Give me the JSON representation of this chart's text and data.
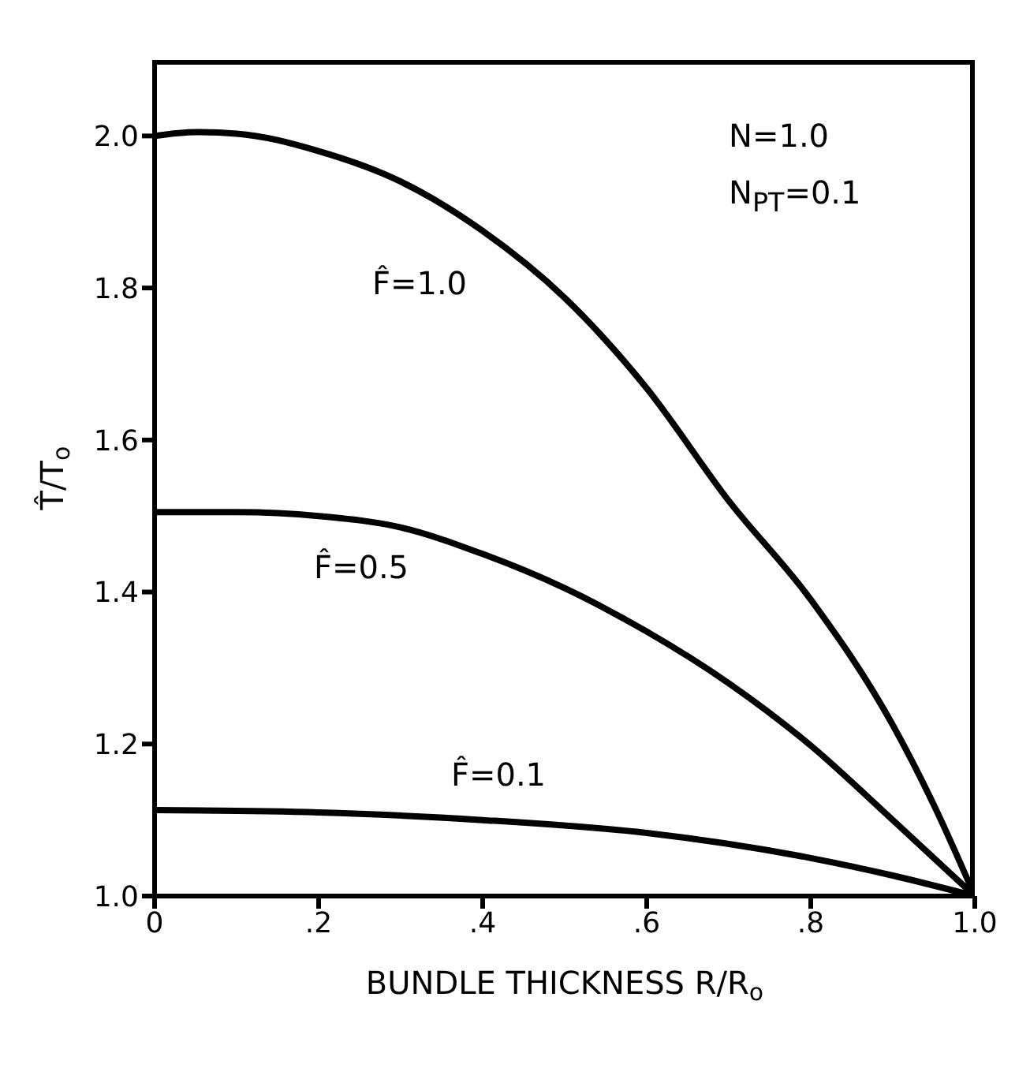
{
  "chart_data": {
    "type": "line",
    "xlabel": "BUNDLE THICKNESS R/R$_{o}$",
    "ylabel": "T̂/T$_{o}$",
    "xlim": [
      0,
      1
    ],
    "ylim": [
      1,
      2.1
    ],
    "xticks": [
      {
        "value": 0,
        "label": "0"
      },
      {
        "value": 0.2,
        "label": ".2"
      },
      {
        "value": 0.4,
        "label": ".4"
      },
      {
        "value": 0.6,
        "label": ".6"
      },
      {
        "value": 0.8,
        "label": ".8"
      },
      {
        "value": 1,
        "label": "1.0"
      }
    ],
    "yticks": [
      {
        "value": 1,
        "label": "1.0"
      },
      {
        "value": 1.2,
        "label": "1.2"
      },
      {
        "value": 1.4,
        "label": "1.4"
      },
      {
        "value": 1.6,
        "label": "1.6"
      },
      {
        "value": 1.8,
        "label": "1.8"
      },
      {
        "value": 2,
        "label": "2.0"
      }
    ],
    "grid": false,
    "legend": false,
    "marker": "none",
    "line_style": "solid",
    "series": [
      {
        "name": "F̂=1.0",
        "color": "#000000",
        "x": [
          0,
          0.05,
          0.1,
          0.2,
          0.3,
          0.4,
          0.5,
          0.6,
          0.7,
          0.8,
          0.9,
          0.95,
          1
        ],
        "values": [
          2.0,
          2.005,
          2.003,
          1.98,
          1.94,
          1.875,
          1.787,
          1.668,
          1.52,
          1.39,
          1.225,
          1.12,
          1.0
        ]
      },
      {
        "name": "F̂=0.5",
        "color": "#000000",
        "x": [
          0,
          0.1,
          0.2,
          0.3,
          0.4,
          0.5,
          0.6,
          0.7,
          0.8,
          0.9,
          1
        ],
        "values": [
          1.505,
          1.505,
          1.5,
          1.485,
          1.45,
          1.405,
          1.348,
          1.28,
          1.198,
          1.1,
          1.0
        ]
      },
      {
        "name": "F̂=0.1",
        "color": "#000000",
        "x": [
          0,
          0.2,
          0.4,
          0.6,
          0.8,
          0.9,
          1
        ],
        "values": [
          1.113,
          1.11,
          1.1,
          1.083,
          1.05,
          1.027,
          1.0
        ]
      }
    ],
    "annotations": [
      "N=1.0",
      "N$_{PT}$=0.1"
    ]
  }
}
